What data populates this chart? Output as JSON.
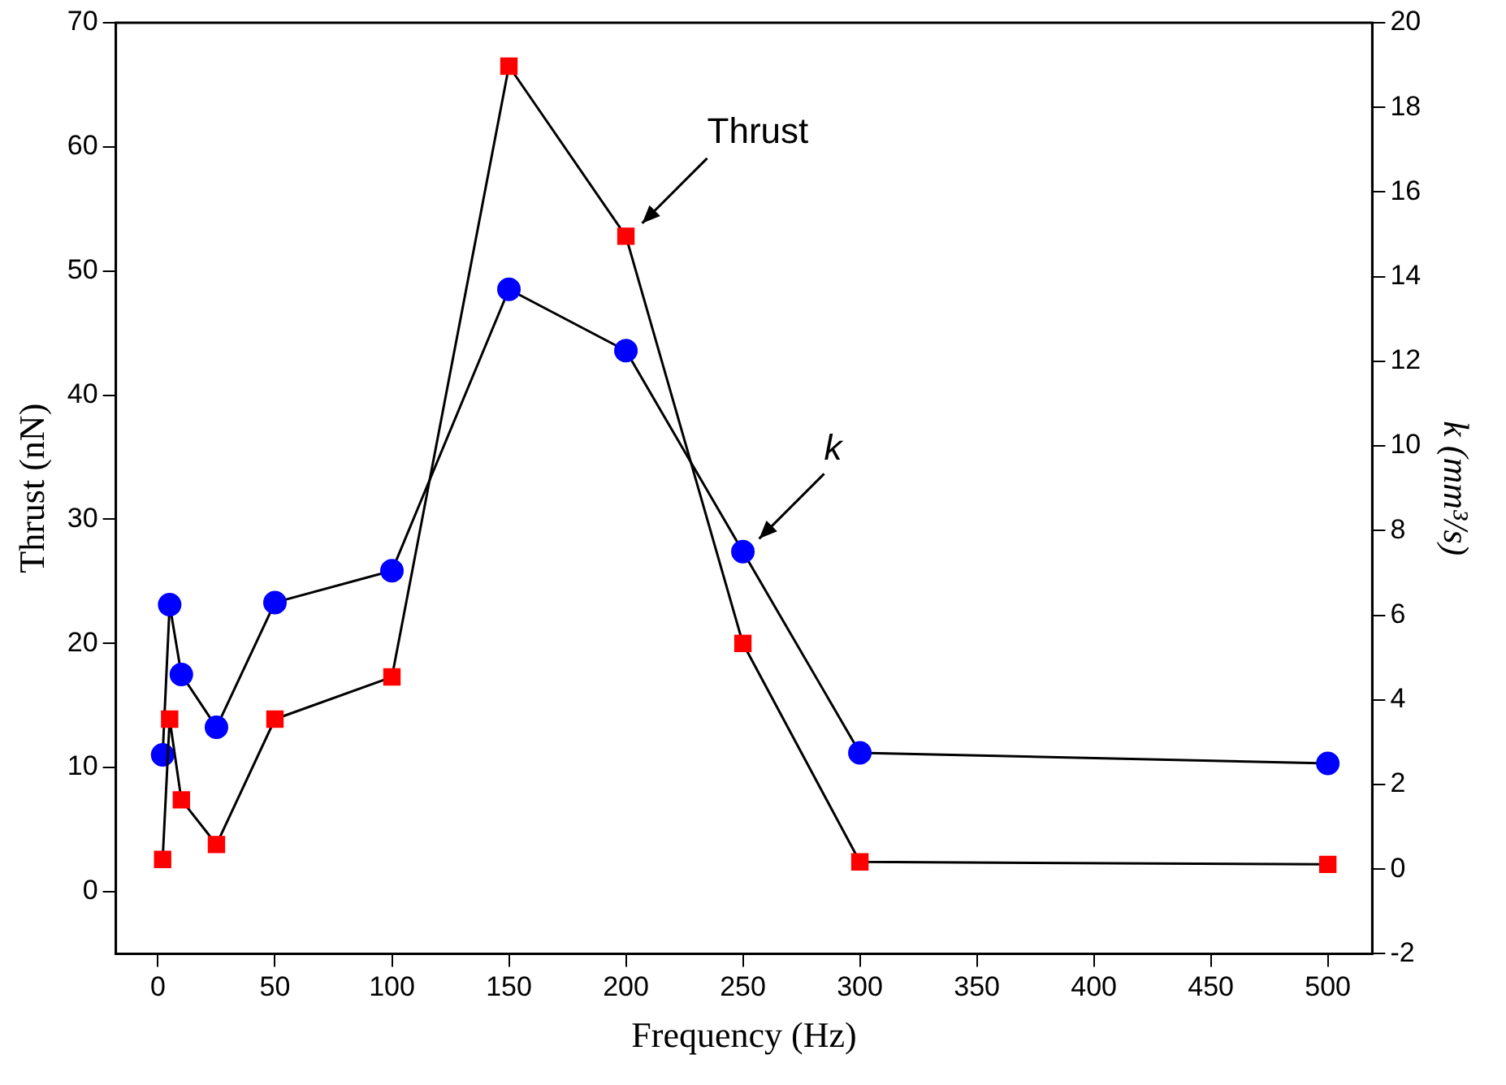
{
  "chart_data": {
    "type": "line",
    "xlabel": "Frequency (Hz)",
    "ylabel": "Thrust (nN)",
    "y2label": "k (mm³/s)",
    "x": [
      2,
      5,
      10,
      25,
      50,
      100,
      150,
      200,
      250,
      300,
      500
    ],
    "series": [
      {
        "name": "Thrust",
        "color": "#ff0000",
        "marker": "square",
        "values": [
          2.6,
          13.9,
          7.4,
          3.8,
          13.9,
          17.3,
          66.5,
          52.8,
          20,
          2.4,
          2.2
        ]
      },
      {
        "name": "k",
        "color": "#0000ff",
        "marker": "circle",
        "axis": "y2",
        "values": [
          2.7,
          6.25,
          4.6,
          3.35,
          6.3,
          7.05,
          13.7,
          12.25,
          7.5,
          2.75,
          2.5
        ]
      }
    ],
    "xlim": [
      -18,
      519
    ],
    "xticks": [
      0,
      50,
      100,
      150,
      200,
      250,
      300,
      350,
      400,
      450,
      500
    ],
    "ylim": [
      -5,
      70
    ],
    "yticks": [
      0,
      10,
      20,
      30,
      40,
      50,
      60,
      70
    ],
    "y2lim": [
      -2,
      20
    ],
    "y2ticks": [
      -2,
      0,
      2,
      4,
      6,
      8,
      10,
      12,
      14,
      16,
      18,
      20
    ],
    "grid": false,
    "legend": false,
    "line_style": "solid"
  }
}
